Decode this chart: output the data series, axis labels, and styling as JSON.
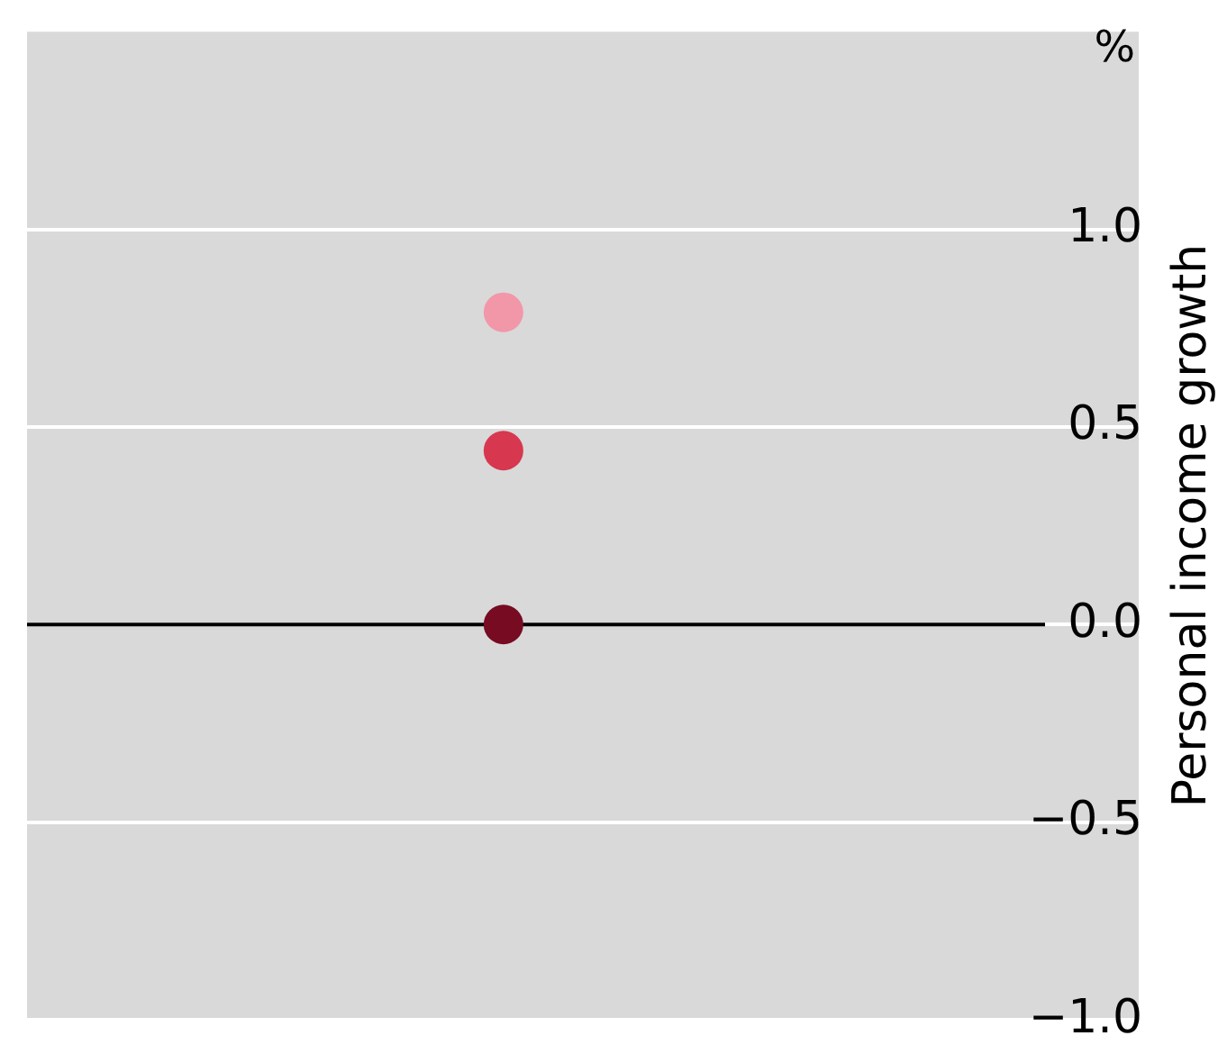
{
  "chart_data": {
    "type": "scatter",
    "ylabel": "Personal income growth",
    "annotations": [
      "%"
    ],
    "categories": [
      null,
      null,
      null,
      null,
      null,
      null,
      null,
      null
    ],
    "series": [
      {
        "color": "#f297a8",
        "values": [
          null,
          null,
          null,
          0.79,
          null,
          null,
          null,
          null
        ]
      },
      {
        "color": "#d7374f",
        "values": [
          null,
          null,
          null,
          0.44,
          null,
          null,
          null,
          null
        ]
      },
      {
        "color": "#760b22",
        "values": [
          null,
          null,
          null,
          0.0,
          null,
          null,
          null,
          null
        ]
      }
    ],
    "ylim": [
      -1.0,
      1.5
    ],
    "yticks": [
      {
        "value": -1.0,
        "label": "−1.0"
      },
      {
        "value": -0.5,
        "label": "−0.5"
      },
      {
        "value": 0,
        "label": "0.0"
      },
      {
        "value": 0.5,
        "label": "0.5"
      },
      {
        "value": 1.0,
        "label": "1.0"
      }
    ],
    "ref_lines": [
      {
        "axis": "y",
        "value": 0,
        "color": "#000000"
      }
    ],
    "grid": "y",
    "legend": false,
    "tick_labels": "y",
    "marker": "circle"
  }
}
